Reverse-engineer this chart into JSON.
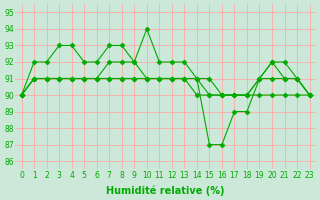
{
  "x": [
    0,
    1,
    2,
    3,
    4,
    5,
    6,
    7,
    8,
    9,
    10,
    11,
    12,
    13,
    14,
    15,
    16,
    17,
    18,
    19,
    20,
    21,
    22,
    23
  ],
  "line1": [
    90,
    92,
    92,
    93,
    93,
    92,
    92,
    93,
    93,
    92,
    94,
    92,
    92,
    92,
    91,
    87,
    87,
    89,
    89,
    91,
    92,
    92,
    91,
    90
  ],
  "line2": [
    90,
    91,
    91,
    91,
    91,
    91,
    91,
    92,
    92,
    92,
    91,
    91,
    91,
    91,
    91,
    90,
    90,
    90,
    90,
    91,
    92,
    91,
    91,
    90
  ],
  "line3": [
    90,
    91,
    91,
    91,
    91,
    91,
    91,
    91,
    91,
    91,
    91,
    91,
    91,
    91,
    91,
    91,
    90,
    90,
    90,
    91,
    91,
    91,
    91,
    90
  ],
  "line4": [
    90,
    91,
    91,
    91,
    91,
    91,
    91,
    91,
    91,
    91,
    91,
    91,
    91,
    91,
    90,
    90,
    90,
    90,
    90,
    90,
    90,
    90,
    90,
    90
  ],
  "bg_color": "#cce8d8",
  "grid_color": "#ffaaaa",
  "line_color": "#00aa00",
  "marker": "D",
  "marker_size": 2.5,
  "ylabel_ticks": [
    86,
    87,
    88,
    89,
    90,
    91,
    92,
    93,
    94,
    95
  ],
  "xlabel": "Humidité relative (%)",
  "ylim": [
    85.5,
    95.5
  ],
  "xlim": [
    -0.5,
    23.5
  ],
  "title_fontsize": 6,
  "tick_fontsize": 5.5,
  "xlabel_fontsize": 7
}
